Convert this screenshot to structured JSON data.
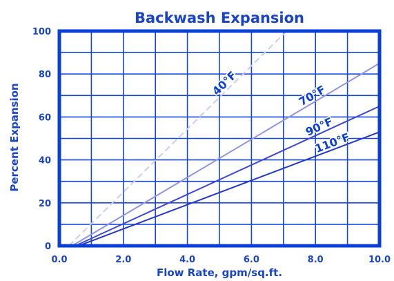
{
  "colors": {
    "frame": "#0a3fd6",
    "grid": "#1646d8",
    "text": "#1a44c8",
    "background": "#ffffff",
    "label_stroke": "#ffffff"
  },
  "chart_data": {
    "type": "line",
    "title": "Backwash Expansion",
    "xlabel": "Flow Rate, gpm/sq.ft.",
    "ylabel": "Percent Expansion",
    "xlim": [
      0,
      10
    ],
    "ylim": [
      0,
      100
    ],
    "x_ticks": [
      "0.0",
      "2.0",
      "4.0",
      "6.0",
      "8.0",
      "10.0"
    ],
    "y_ticks": [
      "0",
      "20",
      "40",
      "60",
      "80",
      "100"
    ],
    "grid": true,
    "series": [
      {
        "name": "40°F",
        "color": "#c8cdf4",
        "dashed": true,
        "points": [
          [
            0.3,
            0
          ],
          [
            7.1,
            100
          ]
        ]
      },
      {
        "name": "70°F",
        "color": "#8f94e6",
        "dashed": false,
        "points": [
          [
            0.4,
            0
          ],
          [
            10.0,
            85
          ]
        ]
      },
      {
        "name": "90°F",
        "color": "#3e48d6",
        "dashed": false,
        "points": [
          [
            0.5,
            0
          ],
          [
            10.0,
            65
          ]
        ]
      },
      {
        "name": "110°F",
        "color": "#2436c6",
        "dashed": false,
        "points": [
          [
            0.6,
            0
          ],
          [
            10.0,
            53
          ]
        ]
      }
    ]
  }
}
